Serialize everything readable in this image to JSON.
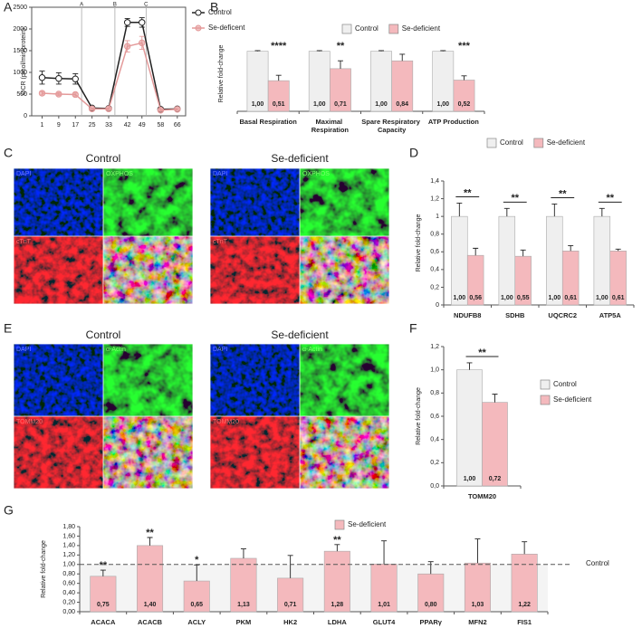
{
  "chart_data": [
    {
      "panel": "A",
      "type": "line",
      "ylabel": "OCR (pmol/min/protein)",
      "x": [
        1,
        9,
        17,
        25,
        33,
        42,
        49,
        58,
        66
      ],
      "xlim": [
        -4,
        70
      ],
      "xticks": [
        1,
        9,
        17,
        25,
        33,
        42,
        49,
        58,
        66
      ],
      "ylim": [
        0,
        2500
      ],
      "yticks": [
        0,
        500,
        1000,
        1500,
        2000,
        2500
      ],
      "annotations": [
        {
          "x": 20,
          "label": "A"
        },
        {
          "x": 36,
          "label": "B"
        },
        {
          "x": 51,
          "label": "C"
        }
      ],
      "legend": "upper right",
      "series": [
        {
          "name": "Control",
          "color": "#222222",
          "values": [
            880,
            860,
            850,
            180,
            170,
            2150,
            2150,
            150,
            160
          ],
          "errors": [
            150,
            130,
            120,
            30,
            25,
            90,
            110,
            25,
            25
          ]
        },
        {
          "name": "Se-deficent",
          "color": "#e49a9a",
          "values": [
            520,
            500,
            490,
            160,
            160,
            1600,
            1680,
            130,
            150
          ],
          "errors": [
            40,
            35,
            35,
            20,
            20,
            130,
            150,
            20,
            20
          ]
        }
      ]
    },
    {
      "panel": "B",
      "type": "bar",
      "ylabel": "Relative fold-change",
      "ylim": [
        0,
        1.25
      ],
      "legend": "top",
      "categories": [
        "Basal Respiration",
        "Maximal Respiration",
        "Spare Respiratory Capacity",
        "ATP Production"
      ],
      "significance": [
        "****",
        "**",
        null,
        "***"
      ],
      "series": [
        {
          "name": "Control",
          "color": "#efefef",
          "values": [
            1,
            1,
            1,
            1
          ],
          "value_labels": [
            "1,00",
            "1,00",
            "1,00",
            "1,00"
          ],
          "errors": [
            0.01,
            0.01,
            0.01,
            0.01
          ]
        },
        {
          "name": "Se-deficient",
          "color": "#f4b9bd",
          "values": [
            0.51,
            0.71,
            0.84,
            0.52
          ],
          "value_labels": [
            "0,51",
            "0,71",
            "0,84",
            "0,52"
          ],
          "errors": [
            0.09,
            0.13,
            0.11,
            0.07
          ]
        }
      ]
    },
    {
      "panel": "D",
      "type": "bar",
      "ylabel": "Relative fold-change",
      "ylim": [
        0,
        1.4
      ],
      "legend": "top",
      "significance_bracket": true,
      "yticks": [
        0,
        {
          "value": 0.2,
          "label": "0,2"
        },
        {
          "value": 0.4,
          "label": "0,4"
        },
        {
          "value": 0.6,
          "label": "0,6"
        },
        {
          "value": 0.8,
          "label": "0,8"
        },
        1,
        {
          "value": 1.2,
          "label": "1,2"
        },
        {
          "value": 1.4,
          "label": "1,4"
        }
      ],
      "categories": [
        "NDUFB8",
        "SDHB",
        "UQCRC2",
        "ATP5A"
      ],
      "significance": [
        "**",
        "**",
        "**",
        "**"
      ],
      "series": [
        {
          "name": "Control",
          "color": "#efefef",
          "values": [
            1,
            1,
            1,
            1
          ],
          "value_labels": [
            "1,00",
            "1,00",
            "1,00",
            "1,00"
          ],
          "errors": [
            0.15,
            0.09,
            0.14,
            0.09
          ]
        },
        {
          "name": "Se-deficient",
          "color": "#f4b9bd",
          "values": [
            0.56,
            0.55,
            0.61,
            0.61
          ],
          "value_labels": [
            "0,56",
            "0,55",
            "0,61",
            "0,61"
          ],
          "errors": [
            0.08,
            0.07,
            0.06,
            0.02
          ]
        }
      ]
    },
    {
      "panel": "F",
      "type": "bar",
      "ylabel": "Relative fold-change",
      "ylim": [
        0,
        1.2
      ],
      "legend": "right",
      "significance_bracket": true,
      "yticks": [
        {
          "value": 0,
          "label": "0,0"
        },
        {
          "value": 0.2,
          "label": "0,2"
        },
        {
          "value": 0.4,
          "label": "0,4"
        },
        {
          "value": 0.6,
          "label": "0,6"
        },
        {
          "value": 0.8,
          "label": "0,8"
        },
        {
          "value": 1,
          "label": "1,0"
        },
        {
          "value": 1.2,
          "label": "1,2"
        }
      ],
      "categories": [
        "TOMM20"
      ],
      "significance": [
        "**"
      ],
      "series": [
        {
          "name": "Control",
          "color": "#efefef",
          "values": [
            1
          ],
          "value_labels": [
            "1,00"
          ],
          "errors": [
            0.06
          ]
        },
        {
          "name": "Se-deficient",
          "color": "#f4b9bd",
          "values": [
            0.72
          ],
          "value_labels": [
            "0,72"
          ],
          "errors": [
            0.07
          ]
        }
      ]
    },
    {
      "panel": "G",
      "type": "bar",
      "ylabel": "Relative fold-change",
      "ylim": [
        0,
        1.8
      ],
      "legend": "top",
      "yticks": [
        {
          "value": 0,
          "label": "0,00"
        },
        {
          "value": 0.2,
          "label": "0,20"
        },
        {
          "value": 0.4,
          "label": "0,40"
        },
        {
          "value": 0.6,
          "label": "0,60"
        },
        {
          "value": 0.8,
          "label": "0,80"
        },
        {
          "value": 1,
          "label": "1,00"
        },
        {
          "value": 1.2,
          "label": "1,20"
        },
        {
          "value": 1.4,
          "label": "1,40"
        },
        {
          "value": 1.6,
          "label": "1,60"
        },
        {
          "value": 1.8,
          "label": "1,80"
        }
      ],
      "reference_line": {
        "value": 1,
        "label": "Control"
      },
      "categories": [
        "ACACA",
        "ACACB",
        "ACLY",
        "PKM",
        "HK2",
        "LDHA",
        "GLUT4",
        "PPARγ",
        "MFN2",
        "FIS1"
      ],
      "significance": [
        "**",
        "**",
        "*",
        null,
        null,
        "**",
        null,
        null,
        null,
        null
      ],
      "series": [
        {
          "name": "Se-deficient",
          "color": "#f4b9bd",
          "values": [
            0.75,
            1.4,
            0.65,
            1.13,
            0.71,
            1.28,
            1.01,
            0.8,
            1.03,
            1.22
          ],
          "value_labels": [
            "0,75",
            "1,40",
            "0,65",
            "1,13",
            "0,71",
            "1,28",
            "1,01",
            "0,80",
            "1,03",
            "1,22"
          ],
          "errors": [
            0.13,
            0.17,
            0.34,
            0.2,
            0.48,
            0.14,
            0.49,
            0.26,
            0.51,
            0.26
          ]
        }
      ]
    }
  ],
  "image_panels": [
    {
      "panel": "C",
      "groups": [
        {
          "title": "Control",
          "labels": [
            "DAPI",
            "OXPHOS",
            "cTnT"
          ]
        },
        {
          "title": "Se-deficient",
          "labels": [
            "DAPI",
            "OXPHOS",
            "cTnT"
          ]
        }
      ]
    },
    {
      "panel": "E",
      "groups": [
        {
          "title": "Control",
          "labels": [
            "DAPI",
            "α-Actin",
            "TOMM20"
          ]
        },
        {
          "title": "Se-deficient",
          "labels": [
            "DAPI",
            "α-Actin",
            "TOMM20"
          ]
        }
      ]
    }
  ]
}
